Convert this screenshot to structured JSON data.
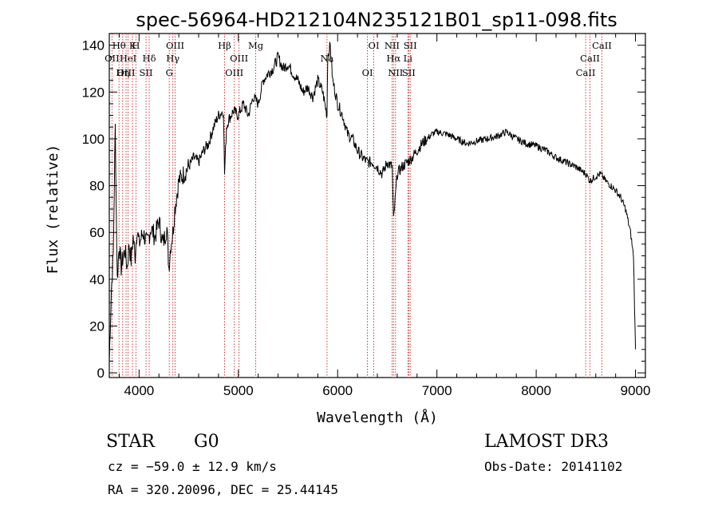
{
  "chart_data": {
    "type": "line",
    "title": "spec-56964-HD212104N235121B01_sp11-098.fits",
    "xlabel": "Wavelength (Å)",
    "ylabel": "Flux (relative)",
    "xlim": [
      3700,
      9100
    ],
    "ylim": [
      -2,
      145
    ],
    "xticks": [
      4000,
      5000,
      6000,
      7000,
      8000,
      9000
    ],
    "yticks": [
      0,
      20,
      40,
      60,
      80,
      100,
      120,
      140
    ],
    "grid": false,
    "series": [
      {
        "x": [
          3700,
          3720,
          3740,
          3760,
          3780,
          3800,
          3820,
          3840,
          3860,
          3880,
          3900,
          3920,
          3940,
          3960,
          3980,
          4000,
          4040,
          4080,
          4120,
          4160,
          4200,
          4240,
          4280,
          4300,
          4320,
          4340,
          4360,
          4400,
          4450,
          4500,
          4550,
          4600,
          4650,
          4700,
          4750,
          4800,
          4850,
          4861,
          4880,
          4900,
          4950,
          5000,
          5050,
          5100,
          5150,
          5200,
          5250,
          5300,
          5350,
          5400,
          5450,
          5500,
          5550,
          5600,
          5650,
          5700,
          5750,
          5800,
          5850,
          5893,
          5900,
          5925,
          5950,
          6000,
          6050,
          6100,
          6150,
          6200,
          6250,
          6300,
          6350,
          6400,
          6450,
          6500,
          6550,
          6563,
          6600,
          6650,
          6700,
          6750,
          6800,
          6850,
          6900,
          6950,
          7000,
          7100,
          7200,
          7300,
          7400,
          7500,
          7600,
          7700,
          7800,
          7900,
          8000,
          8100,
          8200,
          8300,
          8400,
          8500,
          8542,
          8600,
          8650,
          8700,
          8750,
          8800,
          8850,
          8900,
          8950,
          8980,
          9000
        ],
        "y": [
          5,
          35,
          50,
          105,
          40,
          55,
          45,
          50,
          52,
          45,
          55,
          48,
          58,
          50,
          62,
          55,
          60,
          55,
          62,
          58,
          65,
          55,
          62,
          45,
          55,
          60,
          70,
          82,
          85,
          88,
          92,
          90,
          95,
          98,
          105,
          110,
          112,
          85,
          105,
          108,
          112,
          110,
          115,
          110,
          118,
          115,
          125,
          128,
          130,
          135,
          130,
          132,
          128,
          125,
          120,
          122,
          118,
          125,
          120,
          110,
          135,
          140,
          125,
          115,
          110,
          102,
          100,
          95,
          92,
          90,
          90,
          88,
          85,
          90,
          88,
          65,
          85,
          88,
          90,
          92,
          95,
          98,
          100,
          102,
          103,
          102,
          100,
          98,
          99,
          100,
          101,
          103,
          100,
          98,
          97,
          95,
          92,
          90,
          88,
          85,
          82,
          84,
          85,
          82,
          80,
          78,
          75,
          70,
          60,
          50,
          10
        ]
      }
    ],
    "line_markers": [
      {
        "label": "Hθ",
        "x": 3798
      },
      {
        "label": "OII",
        "x": 3727
      },
      {
        "label": "OIII",
        "x": 3869
      },
      {
        "label": "K",
        "x": 3934
      },
      {
        "label": "HeI",
        "x": 3889
      },
      {
        "label": "Hη",
        "x": 3835
      },
      {
        "label": "H",
        "x": 3968
      },
      {
        "label": "Hδ",
        "x": 4102
      },
      {
        "label": "SII",
        "x": 4070
      },
      {
        "label": "OIII",
        "x": 4363
      },
      {
        "label": "Hγ",
        "x": 4340
      },
      {
        "label": "G",
        "x": 4304
      },
      {
        "label": "Hβ",
        "x": 4861
      },
      {
        "label": "OIII",
        "x": 5007
      },
      {
        "label": "OIII",
        "x": 4959
      },
      {
        "label": "Mg",
        "x": 5175
      },
      {
        "label": "Na",
        "x": 5893
      },
      {
        "label": "OI",
        "x": 6300
      },
      {
        "label": "OI",
        "x": 6364
      },
      {
        "label": "Hα",
        "x": 6563
      },
      {
        "label": "SII",
        "x": 6716
      },
      {
        "label": "NII",
        "x": 6548
      },
      {
        "label": "Li",
        "x": 6708
      },
      {
        "label": "NII",
        "x": 6583
      },
      {
        "label": "SII",
        "x": 6731
      },
      {
        "label": "CaII",
        "x": 8542
      },
      {
        "label": "CaII",
        "x": 8498
      },
      {
        "label": "CaII",
        "x": 8662
      }
    ]
  },
  "info": {
    "class": "STAR",
    "subclass": "G0",
    "survey": "LAMOST DR3",
    "cz": "cz = −59.0 ± 12.9 km/s",
    "obs_date": "Obs-Date: 20141102",
    "radec": "RA = 320.20096, DEC =  25.44145"
  }
}
